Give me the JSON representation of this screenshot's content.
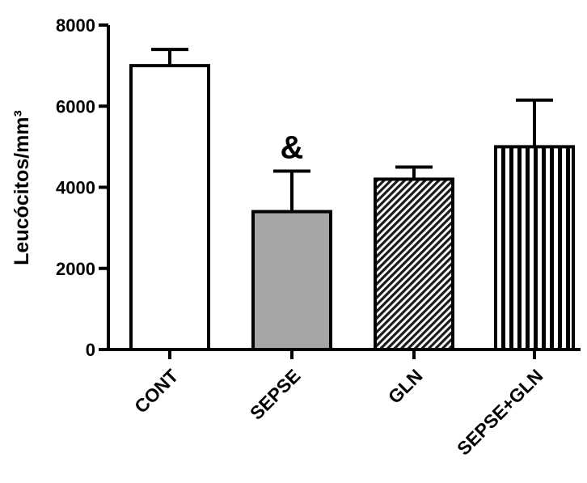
{
  "chart_data": {
    "type": "bar",
    "title": "",
    "xlabel": "",
    "ylabel": "Leucócitos/mm³",
    "ylim": [
      0,
      8000
    ],
    "yticks": [
      0,
      2000,
      4000,
      6000,
      8000
    ],
    "grid": false,
    "categories": [
      "CONT",
      "SEPSE",
      "GLN",
      "SEPSE+GLN"
    ],
    "values": [
      7000,
      3400,
      4200,
      5000
    ],
    "error_plus": [
      400,
      1000,
      300,
      1150
    ],
    "fills": [
      "white",
      "gray",
      "diagonal-hatch",
      "vertical-stripes"
    ],
    "annotations": [
      {
        "category": "SEPSE",
        "text": "&"
      }
    ]
  }
}
